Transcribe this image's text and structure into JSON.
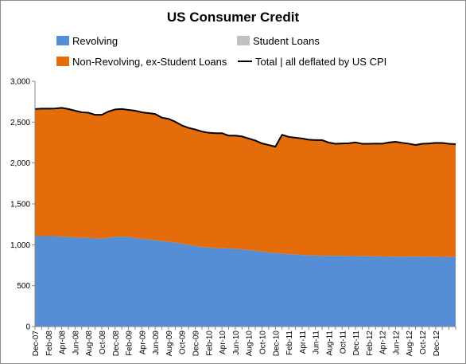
{
  "chart_data": {
    "type": "area",
    "title": "US Consumer Credit",
    "xlabel": "",
    "ylabel": "",
    "ylim": [
      0,
      3000
    ],
    "yticks": [
      "0",
      "500",
      "1,000",
      "1,500",
      "2,000",
      "2,500",
      "3,000"
    ],
    "ytick_values": [
      0,
      500,
      1000,
      1500,
      2000,
      2500,
      3000
    ],
    "x_tick_labels": [
      "Dec-07",
      "Feb-08",
      "Apr-08",
      "Jun-08",
      "Aug-08",
      "Oct-08",
      "Dec-08",
      "Feb-09",
      "Apr-09",
      "Jun-09",
      "Aug-09",
      "Oct-09",
      "Dec-09",
      "Feb-10",
      "Apr-10",
      "Jun-10",
      "Aug-10",
      "Oct-10",
      "Dec-10",
      "Feb-11",
      "Apr-11",
      "Jun-11",
      "Aug-11",
      "Oct-11",
      "Dec-11",
      "Feb-12",
      "Apr-12",
      "Jun-12",
      "Aug-12",
      "Oct-12",
      "Dec-12"
    ],
    "x_start": "Dec-07",
    "x_end": "Feb-13",
    "grid": false,
    "legend_position": "top",
    "series": [
      {
        "name": "Revolving",
        "kind": "area",
        "color": "#558ed5",
        "values": [
          1105,
          1105,
          1105,
          1105,
          1100,
          1095,
          1090,
          1085,
          1082,
          1080,
          1075,
          1085,
          1095,
          1100,
          1095,
          1082,
          1075,
          1065,
          1055,
          1045,
          1035,
          1025,
          1015,
          1000,
          985,
          975,
          965,
          960,
          958,
          955,
          950,
          945,
          935,
          925,
          915,
          905,
          900,
          890,
          885,
          880,
          875,
          870,
          868,
          866,
          865,
          865,
          864,
          863,
          862,
          860,
          860,
          858,
          857,
          856,
          855,
          855,
          856,
          856,
          855,
          854,
          853,
          852,
          851,
          850
        ]
      },
      {
        "name": "Non-Revolving, ex-Student Loans",
        "kind": "area",
        "color": "#e46c0a",
        "values": [
          1555,
          1560,
          1560,
          1562,
          1575,
          1565,
          1550,
          1535,
          1533,
          1510,
          1515,
          1545,
          1560,
          1560,
          1555,
          1558,
          1545,
          1545,
          1545,
          1510,
          1505,
          1480,
          1445,
          1430,
          1425,
          1410,
          1405,
          1405,
          1407,
          1380,
          1385,
          1380,
          1365,
          1350,
          1325,
          1315,
          1300,
          1455,
          1435,
          1430,
          1425,
          1415,
          1412,
          1414,
          1385,
          1370,
          1375,
          1378,
          1390,
          1375,
          1375,
          1380,
          1380,
          1395,
          1405,
          1392,
          1380,
          1365,
          1380,
          1385,
          1393,
          1393,
          1384,
          1380
        ]
      },
      {
        "name": "Student Loans",
        "kind": "area",
        "color": "#c0c0c0",
        "values": []
      },
      {
        "name": "Total | all deflated by US CPI",
        "kind": "line",
        "color": "#000000",
        "values": [
          2660,
          2665,
          2665,
          2667,
          2675,
          2660,
          2640,
          2620,
          2615,
          2590,
          2590,
          2630,
          2655,
          2660,
          2650,
          2640,
          2620,
          2610,
          2600,
          2555,
          2540,
          2505,
          2460,
          2430,
          2410,
          2385,
          2370,
          2365,
          2365,
          2335,
          2335,
          2325,
          2300,
          2275,
          2240,
          2220,
          2200,
          2345,
          2320,
          2310,
          2300,
          2285,
          2280,
          2280,
          2250,
          2235,
          2239,
          2241,
          2252,
          2235,
          2235,
          2238,
          2237,
          2251,
          2260,
          2247,
          2236,
          2221,
          2235,
          2239,
          2246,
          2245,
          2235,
          2230
        ]
      }
    ]
  }
}
